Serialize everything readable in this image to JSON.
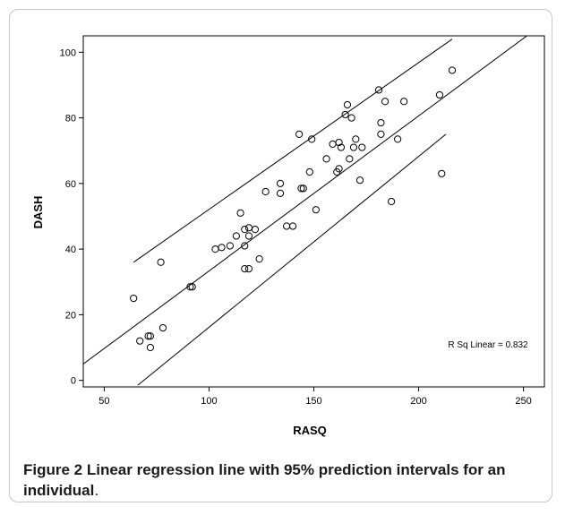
{
  "figure": {
    "label": "Figure 2",
    "text": "Linear regression line with 95% prediction intervals for an individual",
    "period": "."
  },
  "chart_data": {
    "type": "scatter",
    "xlabel": "RASQ",
    "ylabel": "DASH",
    "xlim": [
      40,
      260
    ],
    "ylim": [
      -2,
      105
    ],
    "xticks": [
      50,
      100,
      150,
      200,
      250
    ],
    "yticks": [
      0,
      20,
      40,
      60,
      80,
      100
    ],
    "annotation": "R Sq Linear = 0.832",
    "grid": false,
    "points": [
      {
        "x": 64,
        "y": 25
      },
      {
        "x": 67,
        "y": 12
      },
      {
        "x": 71,
        "y": 13.5
      },
      {
        "x": 72,
        "y": 13.5
      },
      {
        "x": 72,
        "y": 10
      },
      {
        "x": 77,
        "y": 36
      },
      {
        "x": 78,
        "y": 16
      },
      {
        "x": 91,
        "y": 28.5
      },
      {
        "x": 92,
        "y": 28.5
      },
      {
        "x": 103,
        "y": 40
      },
      {
        "x": 106,
        "y": 40.5
      },
      {
        "x": 110,
        "y": 41
      },
      {
        "x": 113,
        "y": 44
      },
      {
        "x": 115,
        "y": 51
      },
      {
        "x": 117,
        "y": 46
      },
      {
        "x": 117,
        "y": 41
      },
      {
        "x": 117,
        "y": 34
      },
      {
        "x": 119,
        "y": 34
      },
      {
        "x": 119,
        "y": 44
      },
      {
        "x": 119,
        "y": 46.5
      },
      {
        "x": 122,
        "y": 46
      },
      {
        "x": 124,
        "y": 37
      },
      {
        "x": 127,
        "y": 57.5
      },
      {
        "x": 134,
        "y": 60
      },
      {
        "x": 134,
        "y": 57
      },
      {
        "x": 137,
        "y": 47
      },
      {
        "x": 140,
        "y": 47
      },
      {
        "x": 143,
        "y": 75
      },
      {
        "x": 144,
        "y": 58.5
      },
      {
        "x": 145,
        "y": 58.5
      },
      {
        "x": 148,
        "y": 63.5
      },
      {
        "x": 149,
        "y": 73.5
      },
      {
        "x": 151,
        "y": 52
      },
      {
        "x": 156,
        "y": 67.5
      },
      {
        "x": 159,
        "y": 72
      },
      {
        "x": 161,
        "y": 63.5
      },
      {
        "x": 162,
        "y": 64.5
      },
      {
        "x": 162,
        "y": 72.5
      },
      {
        "x": 163,
        "y": 71
      },
      {
        "x": 165,
        "y": 81
      },
      {
        "x": 166,
        "y": 84
      },
      {
        "x": 167,
        "y": 67.5
      },
      {
        "x": 168,
        "y": 80
      },
      {
        "x": 169,
        "y": 71
      },
      {
        "x": 170,
        "y": 73.5
      },
      {
        "x": 172,
        "y": 61
      },
      {
        "x": 173,
        "y": 71
      },
      {
        "x": 181,
        "y": 88.5
      },
      {
        "x": 182,
        "y": 78.5
      },
      {
        "x": 182,
        "y": 75
      },
      {
        "x": 184,
        "y": 85
      },
      {
        "x": 187,
        "y": 54.5
      },
      {
        "x": 190,
        "y": 73.5
      },
      {
        "x": 193,
        "y": 85
      },
      {
        "x": 210,
        "y": 87
      },
      {
        "x": 211,
        "y": 63
      },
      {
        "x": 216,
        "y": 94.5
      }
    ],
    "fit_line": {
      "x": [
        40,
        258
      ],
      "y": [
        5,
        108
      ]
    },
    "pi_upper": {
      "x": [
        64,
        216
      ],
      "y": [
        36,
        104
      ]
    },
    "pi_lower": {
      "x": [
        66,
        213
      ],
      "y": [
        -1.5,
        75
      ]
    }
  }
}
